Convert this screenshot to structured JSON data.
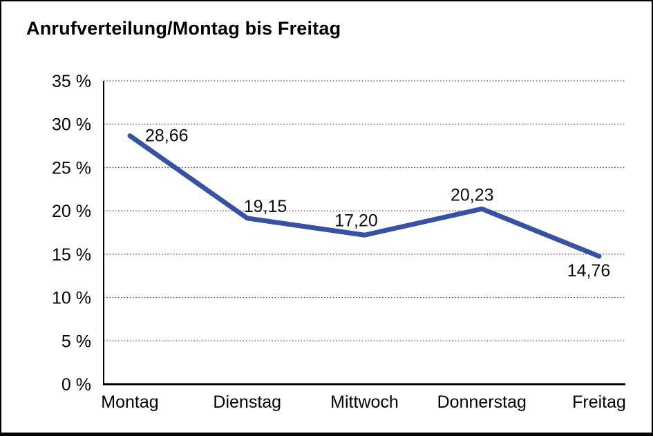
{
  "window": {
    "background": "#ffffff",
    "border_color": "#000000"
  },
  "chart_data": {
    "type": "line",
    "title": "Anrufverteilung/Montag bis Freitag",
    "categories": [
      "Montag",
      "Dienstag",
      "Mittwoch",
      "Donnerstag",
      "Freitag"
    ],
    "series": [
      {
        "name": "Anrufverteilung",
        "values": [
          28.66,
          19.15,
          17.2,
          20.23,
          14.76
        ],
        "value_labels": [
          "28,66",
          "19,15",
          "17,20",
          "20,23",
          "14,76"
        ],
        "color": "#3752A3",
        "line_width": 7
      }
    ],
    "xlabel": "",
    "ylabel": "",
    "ylim": [
      0,
      35
    ],
    "ytick_step": 5,
    "ytick_labels": [
      "0 %",
      "5 %",
      "10 %",
      "15 %",
      "20 %",
      "25 %",
      "30 %",
      "35 %"
    ],
    "grid": "horizontal-dotted",
    "grid_color": "#4d4d4d",
    "axis_color": "#000000",
    "legend_position": "none"
  }
}
